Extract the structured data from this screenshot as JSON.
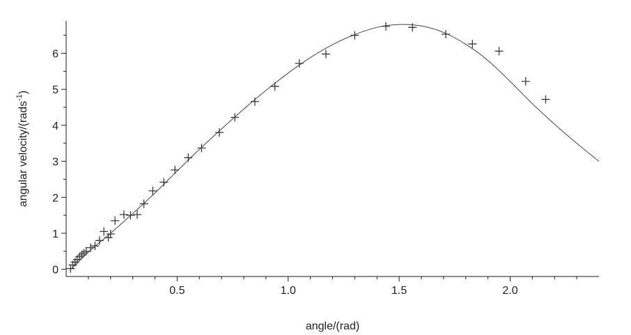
{
  "chart_data": {
    "type": "scatter",
    "xlabel": "angle/(rad)",
    "ylabel_prefix": "angular velocity/(rads",
    "ylabel_sup": "-1",
    "ylabel_suffix": ")",
    "xlim": [
      0.0,
      2.4
    ],
    "ylim": [
      -0.2,
      6.9
    ],
    "x_ticks": [
      0.5,
      1.0,
      1.5,
      2.0
    ],
    "x_tick_labels": [
      "0.5",
      "1.0",
      "1.5",
      "2.0"
    ],
    "y_ticks": [
      0,
      1,
      2,
      3,
      4,
      5,
      6
    ],
    "y_tick_labels": [
      "0",
      "1",
      "2",
      "3",
      "4",
      "5",
      "6"
    ],
    "grid": false,
    "legend": "none",
    "colors": {
      "points": "#3a3a3a",
      "fit": "#444444",
      "axes": "#1a1a1a"
    },
    "series": [
      {
        "kind": "points",
        "marker": "plus",
        "x": [
          0.02,
          0.03,
          0.04,
          0.05,
          0.06,
          0.07,
          0.08,
          0.09,
          0.11,
          0.13,
          0.15,
          0.17,
          0.19,
          0.2,
          0.22,
          0.26,
          0.29,
          0.32,
          0.35,
          0.39,
          0.44,
          0.49,
          0.55,
          0.61,
          0.69,
          0.76,
          0.85,
          0.94,
          1.05,
          1.17,
          1.3,
          1.44,
          1.56,
          1.71,
          1.83,
          1.95,
          2.07,
          2.16
        ],
        "y": [
          0.02,
          0.12,
          0.2,
          0.27,
          0.35,
          0.4,
          0.45,
          0.5,
          0.6,
          0.65,
          0.8,
          1.05,
          0.88,
          0.98,
          1.35,
          1.52,
          1.5,
          1.52,
          1.82,
          2.18,
          2.42,
          2.76,
          3.1,
          3.37,
          3.8,
          4.22,
          4.66,
          5.08,
          5.72,
          5.98,
          6.5,
          6.75,
          6.72,
          6.53,
          6.26,
          6.06,
          5.22,
          4.72
        ]
      },
      {
        "kind": "fit_curve",
        "x": [
          0.02,
          0.1,
          0.2,
          0.3,
          0.4,
          0.5,
          0.6,
          0.7,
          0.8,
          0.9,
          1.0,
          1.1,
          1.2,
          1.3,
          1.4,
          1.5,
          1.6,
          1.7,
          1.8,
          1.9,
          2.0,
          2.1,
          2.2,
          2.3,
          2.4
        ],
        "y": [
          0.0,
          0.48,
          1.0,
          1.55,
          2.12,
          2.73,
          3.33,
          3.9,
          4.45,
          4.97,
          5.45,
          5.88,
          6.24,
          6.52,
          6.72,
          6.8,
          6.76,
          6.58,
          6.25,
          5.8,
          5.22,
          4.6,
          4.03,
          3.5,
          3.0
        ]
      }
    ]
  }
}
